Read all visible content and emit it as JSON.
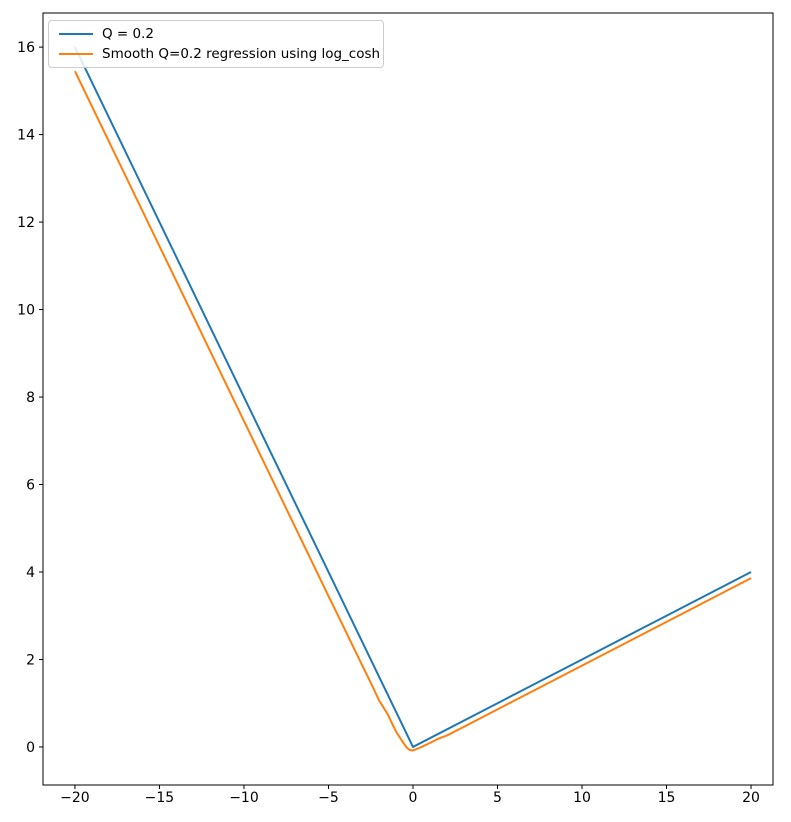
{
  "chart_data": {
    "type": "line",
    "title": "",
    "xlabel": "",
    "ylabel": "",
    "xlim": [
      -21.89,
      21.3
    ],
    "ylim": [
      -0.87,
      16.78
    ],
    "grid": false,
    "x_ticks": {
      "values": [
        -20,
        -15,
        -10,
        -5,
        0,
        5,
        10,
        15,
        20
      ],
      "labels": [
        "−20",
        "−15",
        "−10",
        "−5",
        "0",
        "5",
        "10",
        "15",
        "20"
      ]
    },
    "y_ticks": {
      "values": [
        0,
        2,
        4,
        6,
        8,
        10,
        12,
        14,
        16
      ],
      "labels": [
        "0",
        "2",
        "4",
        "6",
        "8",
        "10",
        "12",
        "14",
        "16"
      ]
    },
    "legend": {
      "position": "upper left",
      "border_color": "#cccccc"
    },
    "series": [
      {
        "name": "Q = 0.2",
        "color": "#1f77b4",
        "x": [
          -20,
          -15,
          -10,
          -5,
          0,
          5,
          10,
          15,
          20
        ],
        "y": [
          16,
          12,
          8,
          4,
          0,
          1,
          2,
          3,
          4
        ]
      },
      {
        "name": "Smooth Q=0.2 regression using log_cosh",
        "color": "#ff7f0e",
        "x": [
          -20,
          -15,
          -10,
          -7.5,
          -5,
          -4,
          -3,
          -2.5,
          -2,
          -1.5,
          -1,
          -0.7,
          -0.4,
          -0.2,
          0,
          0.2,
          0.5,
          1,
          1.5,
          2,
          3,
          4,
          5,
          7.5,
          10,
          12.5,
          15,
          17.5,
          20
        ],
        "y": [
          15.45,
          11.45,
          7.45,
          5.45,
          3.45,
          2.66,
          1.86,
          1.47,
          1.06,
          0.75,
          0.35,
          0.17,
          0.0,
          -0.07,
          -0.08,
          -0.05,
          0.0,
          0.09,
          0.19,
          0.26,
          0.46,
          0.66,
          0.86,
          1.36,
          1.86,
          2.36,
          2.86,
          3.36,
          3.86
        ]
      }
    ]
  }
}
